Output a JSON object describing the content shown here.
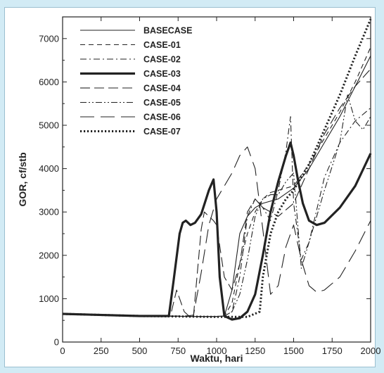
{
  "chart_data": {
    "type": "line",
    "title": "",
    "xlabel": "Waktu, hari",
    "ylabel": "GOR, cf/stb",
    "xlim": [
      0,
      2000
    ],
    "ylim": [
      0,
      7500
    ],
    "xticks": [
      0,
      250,
      500,
      750,
      1000,
      1250,
      1500,
      1750,
      2000
    ],
    "yticks": [
      0,
      1000,
      2000,
      3000,
      4000,
      5000,
      6000,
      7000
    ],
    "grid": false,
    "legend_position": "top-left",
    "series": [
      {
        "name": "BASECASE",
        "style": "solid",
        "x": [
          0,
          500,
          900,
          1000,
          1050,
          1100,
          1150,
          1200,
          1250,
          1300,
          1400,
          1500,
          1600,
          1700,
          1800,
          1900,
          2000
        ],
        "y": [
          650,
          600,
          590,
          590,
          600,
          1200,
          2500,
          2900,
          3100,
          3200,
          3300,
          3550,
          4000,
          4600,
          5200,
          5900,
          6600
        ]
      },
      {
        "name": "CASE-01",
        "style": "short-dash",
        "x": [
          0,
          500,
          900,
          1000,
          1050,
          1100,
          1150,
          1200,
          1250,
          1300,
          1350,
          1400,
          1500,
          1600,
          1700,
          1800,
          1900,
          2000
        ],
        "y": [
          650,
          600,
          590,
          590,
          600,
          900,
          1800,
          2500,
          3000,
          3300,
          3450,
          3500,
          3600,
          4100,
          4700,
          5300,
          6000,
          6800
        ]
      },
      {
        "name": "CASE-02",
        "style": "dash-dot",
        "x": [
          0,
          500,
          900,
          1000,
          1050,
          1100,
          1150,
          1200,
          1250,
          1300,
          1350,
          1400,
          1450,
          1480,
          1500,
          1550,
          1600,
          1700,
          1800,
          1900,
          2000
        ],
        "y": [
          650,
          600,
          590,
          590,
          600,
          700,
          1500,
          2900,
          3300,
          3100,
          2800,
          3500,
          4400,
          5200,
          3200,
          1900,
          2300,
          3800,
          4600,
          5100,
          5400
        ]
      },
      {
        "name": "CASE-03",
        "style": "thick-solid",
        "x": [
          0,
          500,
          690,
          720,
          760,
          780,
          800,
          830,
          860,
          900,
          950,
          980,
          1000,
          1020,
          1050,
          1100,
          1150,
          1200,
          1250,
          1300,
          1350,
          1400,
          1450,
          1480,
          1500,
          1530,
          1560,
          1600,
          1650,
          1700,
          1800,
          1900,
          2000
        ],
        "y": [
          650,
          600,
          600,
          1400,
          2500,
          2750,
          2800,
          2700,
          2750,
          2950,
          3500,
          3750,
          3000,
          1500,
          600,
          520,
          550,
          700,
          1100,
          2000,
          3000,
          3700,
          4300,
          4600,
          4300,
          3700,
          3200,
          2800,
          2700,
          2750,
          3100,
          3600,
          4350
        ]
      },
      {
        "name": "CASE-04",
        "style": "long-dash",
        "x": [
          0,
          500,
          700,
          740,
          770,
          790,
          820,
          850,
          880,
          900,
          920,
          950,
          980,
          1000,
          1050,
          1100,
          1150,
          1200,
          1250,
          1300,
          1400,
          1500,
          1600,
          1700,
          1800,
          1900,
          2000
        ],
        "y": [
          650,
          600,
          600,
          1200,
          900,
          700,
          600,
          600,
          1800,
          2600,
          3000,
          2900,
          2800,
          2700,
          1500,
          1200,
          1800,
          3000,
          3300,
          3100,
          2900,
          3200,
          4000,
          4800,
          5400,
          5900,
          6300
        ]
      },
      {
        "name": "CASE-05",
        "style": "dash-dot-dot",
        "x": [
          0,
          500,
          900,
          1000,
          1050,
          1100,
          1150,
          1200,
          1250,
          1300,
          1350,
          1400,
          1450,
          1500,
          1550,
          1600,
          1700,
          1800,
          1850,
          1900,
          1950,
          2000
        ],
        "y": [
          650,
          600,
          590,
          590,
          600,
          700,
          1100,
          1900,
          2900,
          3300,
          3400,
          3400,
          3700,
          3900,
          1700,
          2300,
          3500,
          4600,
          5700,
          5100,
          4900,
          5200
        ]
      },
      {
        "name": "CASE-06",
        "style": "very-long-dash",
        "x": [
          0,
          500,
          800,
          850,
          900,
          950,
          1000,
          1050,
          1100,
          1150,
          1200,
          1250,
          1300,
          1350,
          1400,
          1450,
          1500,
          1550,
          1600,
          1650,
          1700,
          1800,
          1900,
          2000
        ],
        "y": [
          650,
          600,
          600,
          620,
          1600,
          2700,
          3300,
          3600,
          3900,
          4300,
          4500,
          4000,
          2600,
          1100,
          1300,
          2200,
          2700,
          1900,
          1300,
          1150,
          1200,
          1500,
          2100,
          2800
        ]
      },
      {
        "name": "CASE-07",
        "style": "dotted",
        "x": [
          0,
          500,
          1000,
          1200,
          1280,
          1300,
          1350,
          1400,
          1450,
          1500,
          1600,
          1700,
          1800,
          1900,
          2000
        ],
        "y": [
          650,
          600,
          580,
          580,
          700,
          1500,
          2500,
          3000,
          3300,
          3500,
          4100,
          4900,
          5700,
          6600,
          7450
        ]
      }
    ]
  }
}
